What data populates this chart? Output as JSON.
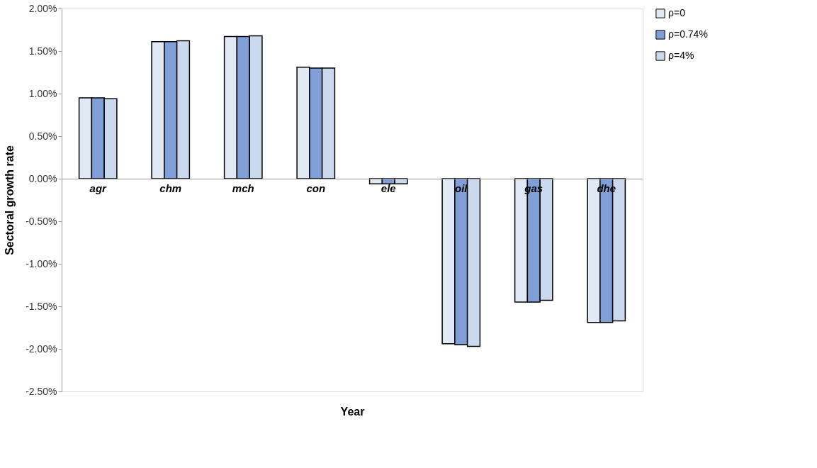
{
  "chart_data": {
    "type": "bar",
    "xlabel": "Year",
    "ylabel": "Sectoral growth rate",
    "categories": [
      "agr",
      "chm",
      "mch",
      "con",
      "ele",
      "oil",
      "gas",
      "dhe"
    ],
    "series": [
      {
        "name": "ρ=0",
        "color": "#e1e9f5",
        "values": [
          0.95,
          1.61,
          1.67,
          1.31,
          -0.06,
          -1.94,
          -1.45,
          -1.69
        ]
      },
      {
        "name": "ρ=0.74%",
        "color": "#7f9fd6",
        "values": [
          0.95,
          1.61,
          1.67,
          1.3,
          -0.06,
          -1.95,
          -1.45,
          -1.69
        ]
      },
      {
        "name": "ρ=4%",
        "color": "#cbd9ef",
        "values": [
          0.94,
          1.62,
          1.68,
          1.3,
          -0.06,
          -1.97,
          -1.43,
          -1.67
        ]
      }
    ],
    "ylim": [
      -2.5,
      2
    ],
    "yticks": [
      {
        "value": -2.5,
        "label": "-2.50%"
      },
      {
        "value": -2,
        "label": "-2.00%"
      },
      {
        "value": -1.5,
        "label": "-1.50%"
      },
      {
        "value": -1,
        "label": "-1.00%"
      },
      {
        "value": -0.5,
        "label": "-0.50%"
      },
      {
        "value": 0,
        "label": "0.00%"
      },
      {
        "value": 0.5,
        "label": "0.50%"
      },
      {
        "value": 1,
        "label": "1.00%"
      },
      {
        "value": 1.5,
        "label": "1.50%"
      },
      {
        "value": 2,
        "label": "2.00%"
      }
    ],
    "grid": false,
    "legend": "right"
  }
}
